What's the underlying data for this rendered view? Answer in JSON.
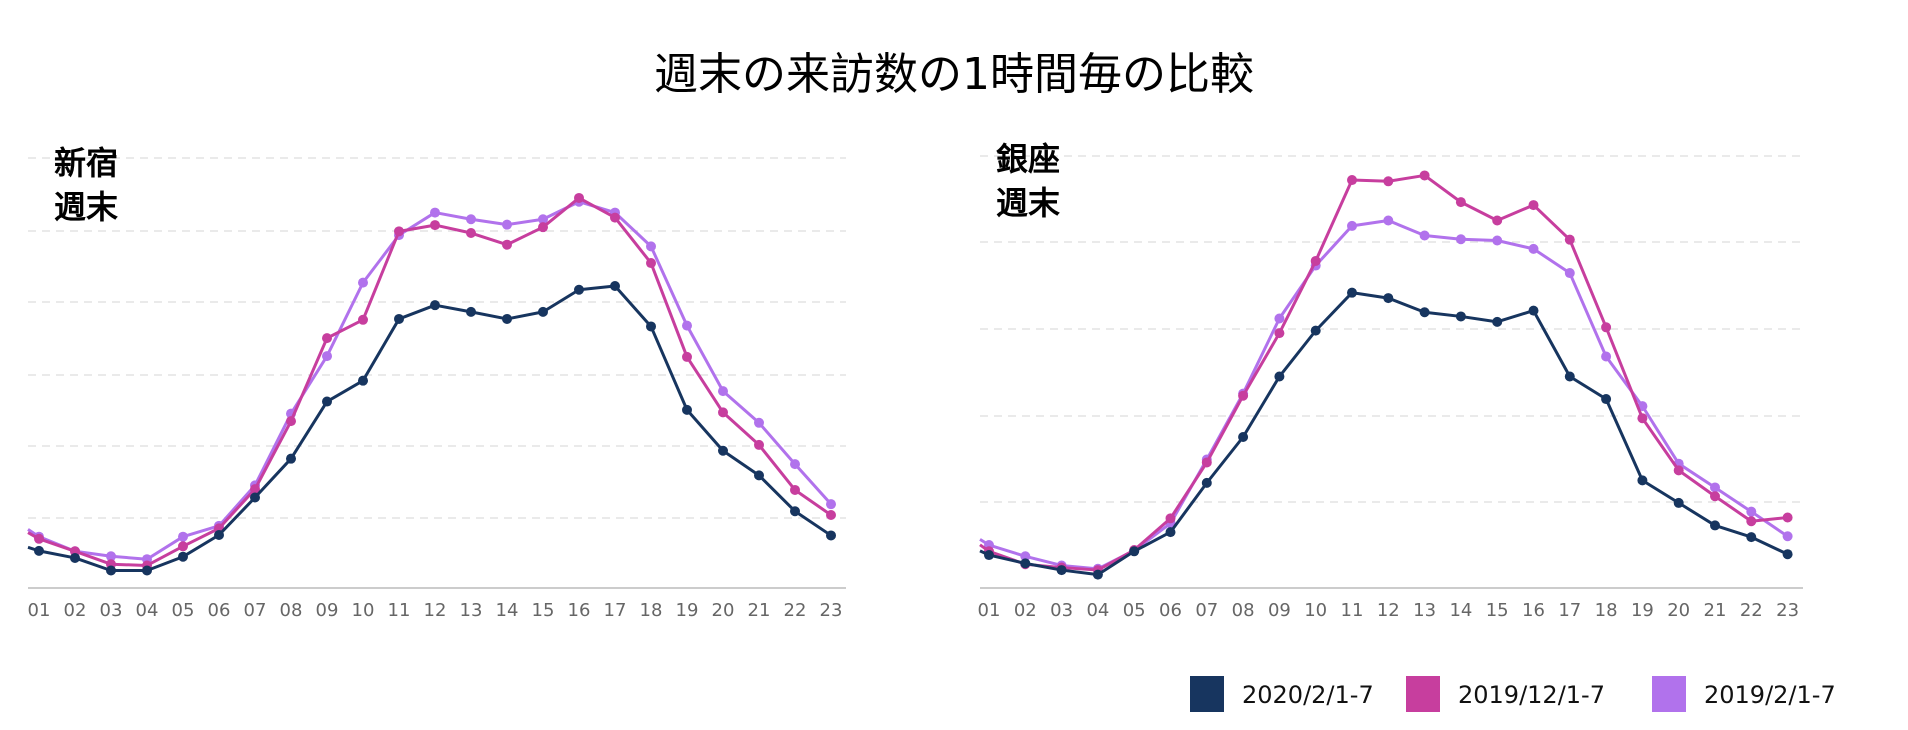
{
  "title": "週末の来訪数の1時間毎の比較",
  "legend": [
    {
      "label": "2020/2/1-7",
      "color": "#17355f"
    },
    {
      "label": "2019/12/1-7",
      "color": "#c73e9e"
    },
    {
      "label": "2019/2/1-7",
      "color": "#b172ec"
    }
  ],
  "chart_data": [
    {
      "type": "line",
      "label_lines": [
        "新宿",
        "週末"
      ],
      "categories": [
        "01",
        "02",
        "03",
        "04",
        "05",
        "06",
        "07",
        "08",
        "09",
        "10",
        "11",
        "12",
        "13",
        "14",
        "15",
        "16",
        "17",
        "18",
        "19",
        "20",
        "21",
        "22",
        "23"
      ],
      "ylim": [
        0,
        105
      ],
      "grid": true,
      "series": [
        {
          "name": "2020/2/1-7",
          "values": [
            8.9,
            7.2,
            4.2,
            4.2,
            7.5,
            12.7,
            21.7,
            31.0,
            44.7,
            49.7,
            64.5,
            67.8,
            66.2,
            64.5,
            66.2,
            71.5,
            72.4,
            62.7,
            42.7,
            32.9,
            27.0,
            18.4,
            12.6
          ]
        },
        {
          "name": "2019/12/1-7",
          "values": [
            11.8,
            8.8,
            5.7,
            5.4,
            10.0,
            14.3,
            23.7,
            40.0,
            59.9,
            64.3,
            85.5,
            87.0,
            85.1,
            82.3,
            86.5,
            93.5,
            88.8,
            77.9,
            55.4,
            42.1,
            34.3,
            23.5,
            17.5
          ]
        },
        {
          "name": "2019/2/1-7",
          "values": [
            12.3,
            8.8,
            7.6,
            6.9,
            12.3,
            14.9,
            24.6,
            41.8,
            55.6,
            73.2,
            84.6,
            90.0,
            88.4,
            87.1,
            88.4,
            92.6,
            90.0,
            81.9,
            62.9,
            47.2,
            39.6,
            29.7,
            20.1
          ]
        }
      ]
    },
    {
      "type": "line",
      "label_lines": [
        "銀座",
        "週末"
      ],
      "categories": [
        "01",
        "02",
        "03",
        "04",
        "05",
        "06",
        "07",
        "08",
        "09",
        "10",
        "11",
        "12",
        "13",
        "14",
        "15",
        "16",
        "17",
        "18",
        "19",
        "20",
        "21",
        "22",
        "23"
      ],
      "ylim": [
        0,
        105
      ],
      "grid": true,
      "series": [
        {
          "name": "2020/2/1-7",
          "values": [
            7.9,
            5.9,
            4.3,
            3.2,
            8.8,
            13.4,
            25.2,
            36.2,
            50.7,
            61.7,
            70.8,
            69.5,
            66.1,
            65.1,
            63.8,
            66.5,
            50.7,
            45.3,
            25.8,
            20.4,
            15.0,
            12.2,
            8.1
          ]
        },
        {
          "name": "2019/12/1-7",
          "values": [
            8.8,
            5.7,
            4.9,
            4.3,
            9.1,
            16.7,
            30.1,
            46.1,
            61.1,
            78.4,
            97.8,
            97.5,
            98.9,
            92.5,
            88.1,
            91.8,
            83.5,
            62.5,
            40.7,
            28.2,
            22.0,
            16.0,
            16.9
          ]
        },
        {
          "name": "2019/2/1-7",
          "values": [
            10.3,
            7.6,
            5.4,
            4.6,
            9.0,
            15.5,
            30.8,
            46.6,
            64.6,
            77.3,
            86.8,
            88.1,
            84.5,
            83.6,
            83.3,
            81.3,
            75.5,
            55.5,
            43.6,
            29.8,
            24.1,
            18.3,
            12.4
          ]
        }
      ]
    }
  ]
}
